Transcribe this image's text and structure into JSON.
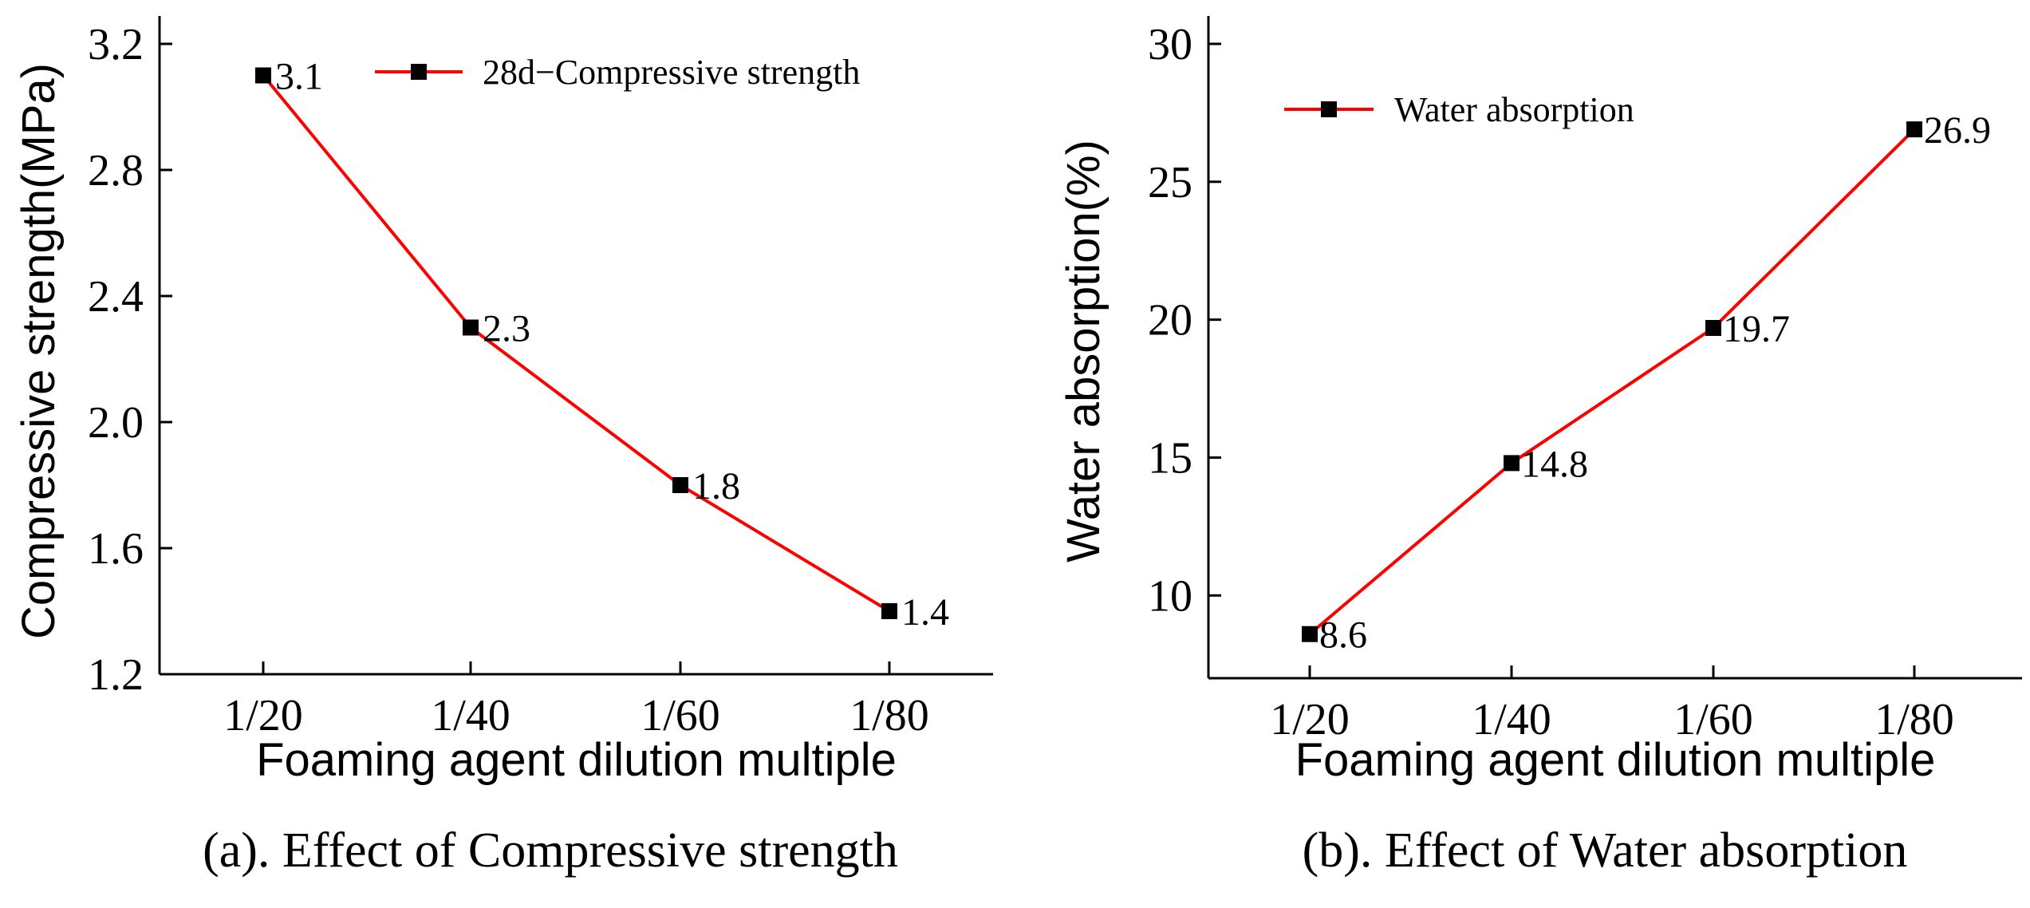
{
  "colors": {
    "line": "#ff0000",
    "marker": "#000000",
    "axis": "#000000"
  },
  "chart_data": [
    {
      "type": "line",
      "caption": "(a). Effect of Compressive strength",
      "xlabel": "Foaming agent dilution multiple",
      "ylabel": "Compressive strength(MPa)",
      "categories": [
        "1/20",
        "1/40",
        "1/60",
        "1/80"
      ],
      "ylim": [
        1.2,
        3.2
      ],
      "yticks": [
        "1.2",
        "1.6",
        "2.0",
        "2.4",
        "2.8",
        "3.2"
      ],
      "series": [
        {
          "name": "28d−Compressive strength",
          "values": [
            3.1,
            2.3,
            1.8,
            1.4
          ],
          "labels": [
            "3.1",
            "2.3",
            "1.8",
            "1.4"
          ],
          "marker": "square"
        }
      ],
      "legend": "top-right",
      "grid": false
    },
    {
      "type": "line",
      "caption": "(b). Effect of Water absorption",
      "xlabel": "Foaming agent dilution multiple",
      "ylabel": "Water absorption(%)",
      "categories": [
        "1/20",
        "1/40",
        "1/60",
        "1/80"
      ],
      "ylim": [
        7,
        30
      ],
      "yticks": [
        "10",
        "15",
        "20",
        "25",
        "30"
      ],
      "series": [
        {
          "name": "Water absorption",
          "values": [
            8.6,
            14.8,
            19.7,
            26.9
          ],
          "labels": [
            "8.6",
            "14.8",
            "19.7",
            "26.9"
          ],
          "marker": "square"
        }
      ],
      "legend": "top-left",
      "grid": false
    }
  ]
}
